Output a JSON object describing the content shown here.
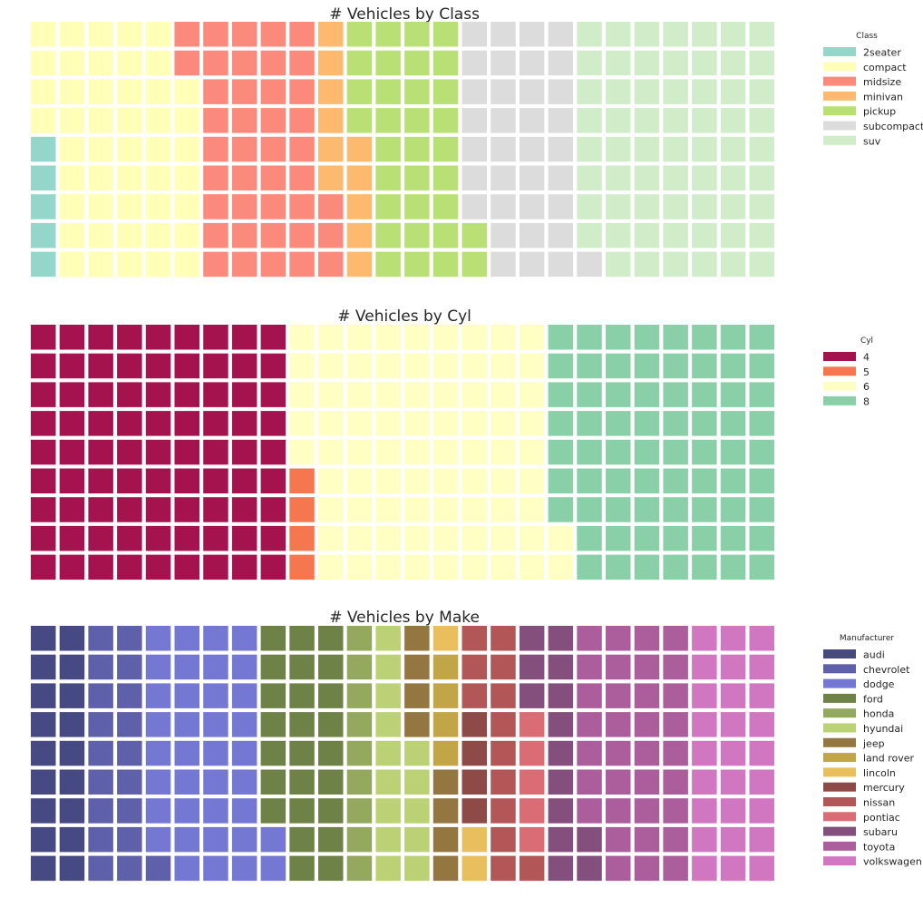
{
  "chart_data": [
    {
      "type": "waffle",
      "title": "# Vehicles by Class",
      "legend_title": "Class",
      "legend_position": "right",
      "rows": 9,
      "columns": 26,
      "fill_order": "column-major, bottom-to-top",
      "categories": [
        "2seater",
        "compact",
        "midsize",
        "minivan",
        "pickup",
        "subcompact",
        "suv"
      ],
      "values": [
        5,
        47,
        41,
        11,
        33,
        35,
        62
      ],
      "colors": [
        "#8dd3c7",
        "#ffffb3",
        "#fb8072",
        "#fdb462",
        "#b3de69",
        "#d9d9d9",
        "#ccebc5"
      ]
    },
    {
      "type": "waffle",
      "title": "# Vehicles by Cyl",
      "legend_title": "Cyl",
      "legend_position": "right",
      "rows": 9,
      "columns": 26,
      "fill_order": "column-major, bottom-to-top",
      "categories": [
        "4",
        "5",
        "6",
        "8"
      ],
      "values": [
        81,
        4,
        79,
        70
      ],
      "colors": [
        "#9e0142",
        "#f46d43",
        "#ffffbf",
        "#80cba0"
      ]
    },
    {
      "type": "waffle",
      "title": "# Vehicles by Make",
      "legend_title": "Manufacturer",
      "legend_position": "right",
      "rows": 9,
      "columns": 26,
      "fill_order": "column-major, bottom-to-top",
      "categories": [
        "audi",
        "chevrolet",
        "dodge",
        "ford",
        "honda",
        "hyundai",
        "jeep",
        "land rover",
        "lincoln",
        "mercury",
        "nissan",
        "pontiac",
        "subaru",
        "toyota",
        "volkswagen"
      ],
      "values": [
        18,
        19,
        37,
        25,
        9,
        14,
        8,
        4,
        3,
        4,
        13,
        5,
        14,
        34,
        27
      ],
      "colors": [
        "#393b79",
        "#5254a3",
        "#6b6ecf",
        "#637939",
        "#8ca252",
        "#b5cf6b",
        "#8c6d31",
        "#bd9e39",
        "#e7ba52",
        "#843c39",
        "#ad494a",
        "#d6616b",
        "#7b4173",
        "#a55194",
        "#ce6dbd"
      ]
    }
  ]
}
